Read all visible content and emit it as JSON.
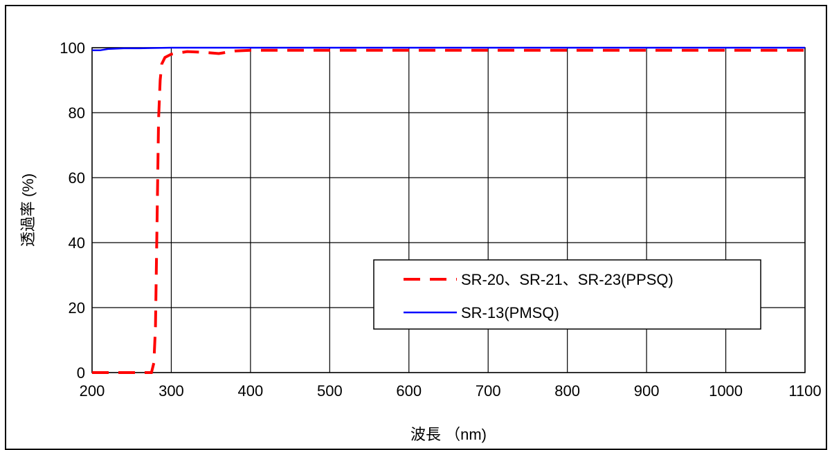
{
  "chart_data": {
    "type": "line",
    "xlabel": "波長 （nm)",
    "ylabel": "透過率 (%)",
    "xlim": [
      200,
      1100
    ],
    "ylim": [
      0,
      100
    ],
    "x_ticks": [
      "200",
      "300",
      "400",
      "500",
      "600",
      "700",
      "800",
      "900",
      "1000",
      "1100"
    ],
    "y_ticks": [
      "0",
      "20",
      "40",
      "60",
      "80",
      "100"
    ],
    "grid": true,
    "legend_position": "center-right",
    "series": [
      {
        "name": "SR-20、SR-21、SR-23(PPSQ)",
        "color": "#ff0000",
        "style": "dashed",
        "points": [
          [
            200,
            0
          ],
          [
            275,
            0
          ],
          [
            278,
            3
          ],
          [
            280,
            14
          ],
          [
            282,
            45
          ],
          [
            284,
            78
          ],
          [
            286,
            90
          ],
          [
            288,
            95
          ],
          [
            292,
            97
          ],
          [
            300,
            98
          ],
          [
            320,
            98.8
          ],
          [
            340,
            98.6
          ],
          [
            360,
            98.2
          ],
          [
            380,
            99
          ],
          [
            400,
            99.2
          ],
          [
            500,
            99.2
          ],
          [
            600,
            99.2
          ],
          [
            700,
            99.2
          ],
          [
            800,
            99.2
          ],
          [
            900,
            99.2
          ],
          [
            1000,
            99.2
          ],
          [
            1100,
            99.2
          ]
        ]
      },
      {
        "name": "SR-13(PMSQ)",
        "color": "#0000ff",
        "style": "solid",
        "points": [
          [
            200,
            99.2
          ],
          [
            210,
            99.2
          ],
          [
            220,
            99.6
          ],
          [
            240,
            99.8
          ],
          [
            260,
            99.8
          ],
          [
            275,
            99.9
          ],
          [
            300,
            100
          ],
          [
            400,
            100
          ],
          [
            500,
            100
          ],
          [
            600,
            100
          ],
          [
            700,
            100
          ],
          [
            800,
            100
          ],
          [
            900,
            100
          ],
          [
            1000,
            100
          ],
          [
            1100,
            100
          ]
        ]
      }
    ]
  }
}
